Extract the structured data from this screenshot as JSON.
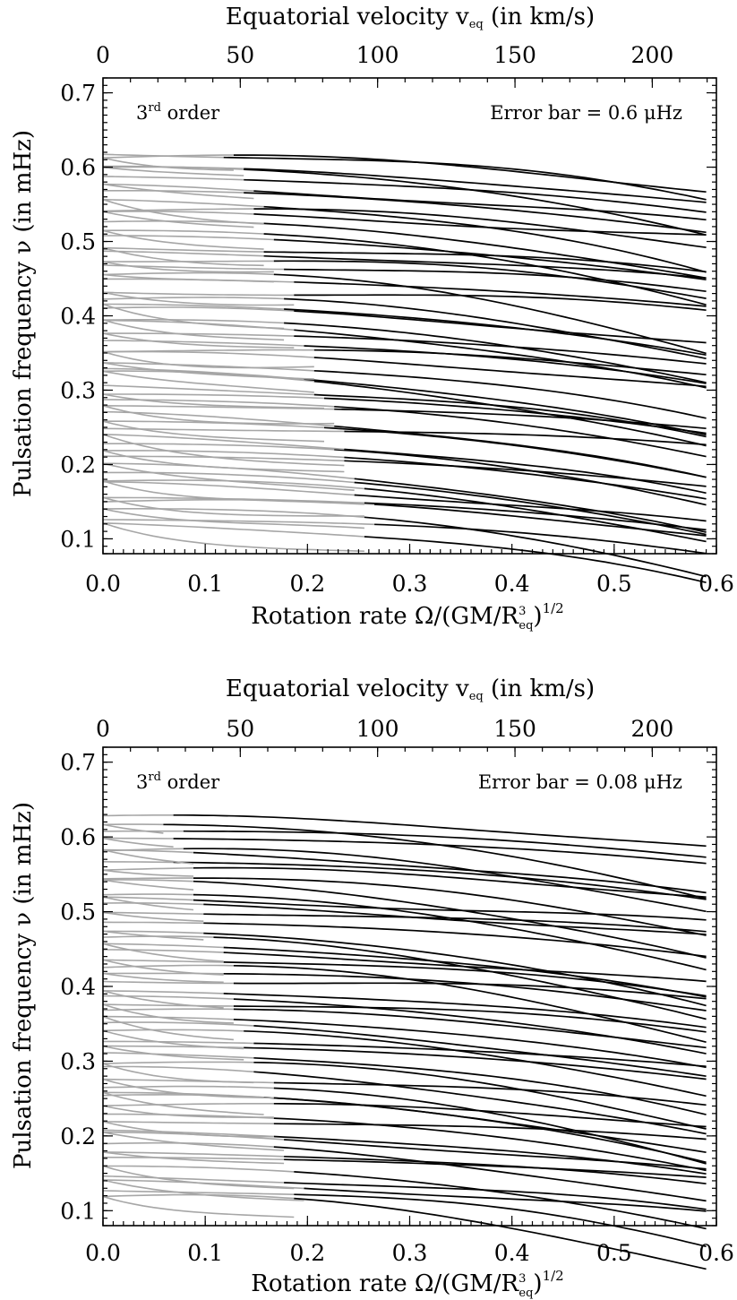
{
  "chart_data": [
    {
      "type": "line",
      "annotation_left": "3rd order",
      "annotation_right": "Error bar = 0.6 μHz",
      "xlabel": "Rotation rate Ω/(GM/R³eq)^1/2",
      "ylabel": "Pulsation frequency ν (in mHz)",
      "top_xlabel": "Equatorial velocity veq (in km/s)",
      "xlim": [
        0.0,
        0.6
      ],
      "ylim": [
        0.08,
        0.72
      ],
      "xticks": [
        "0.0",
        "0.1",
        "0.2",
        "0.3",
        "0.4",
        "0.5",
        "0.6"
      ],
      "yticks": [
        "0.1",
        "0.2",
        "0.3",
        "0.4",
        "0.5",
        "0.6",
        "0.7"
      ],
      "top_xticks": [
        "0",
        "50",
        "100",
        "150",
        "200"
      ],
      "top_xtick_positions_rate": [
        0.0,
        0.1343,
        0.2686,
        0.403,
        0.5373
      ],
      "x_max_plotted": 0.59,
      "series_description": "Frequencies of many pulsation modes vs rotation rate; gray = small-rotation regime, black = valid complete-calculation regime",
      "gray_to_black_transition_rate": [
        0.13,
        0.27
      ],
      "grid": false,
      "legend": "none"
    },
    {
      "type": "line",
      "annotation_left": "3rd order",
      "annotation_right": "Error bar = 0.08 μHz",
      "xlabel": "Rotation rate Ω/(GM/R³eq)^1/2",
      "ylabel": "Pulsation frequency ν (in mHz)",
      "top_xlabel": "Equatorial velocity veq (in km/s)",
      "xlim": [
        0.0,
        0.6
      ],
      "ylim": [
        0.08,
        0.72
      ],
      "xticks": [
        "0.0",
        "0.1",
        "0.2",
        "0.3",
        "0.4",
        "0.5",
        "0.6"
      ],
      "yticks": [
        "0.1",
        "0.2",
        "0.3",
        "0.4",
        "0.5",
        "0.6",
        "0.7"
      ],
      "top_xticks": [
        "0",
        "50",
        "100",
        "150",
        "200"
      ],
      "top_xtick_positions_rate": [
        0.0,
        0.1343,
        0.2686,
        0.403,
        0.5373
      ],
      "x_max_plotted": 0.59,
      "series_description": "Frequencies of many pulsation modes vs rotation rate; gray = small-rotation regime, black = valid complete-calculation regime",
      "gray_to_black_transition_rate": [
        0.07,
        0.2
      ],
      "grid": false,
      "legend": "none"
    }
  ]
}
